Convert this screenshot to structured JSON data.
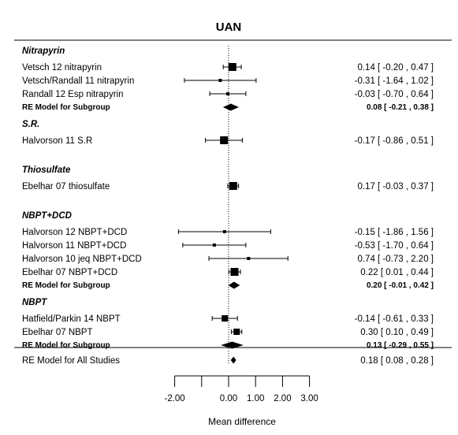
{
  "chart_data": {
    "type": "forest",
    "title": "UAN",
    "xlabel": "Mean difference",
    "x_ticks": [
      -2,
      -1,
      0,
      1,
      2,
      3
    ],
    "x_tick_labels": [
      "-2.00",
      "",
      "0.00",
      "1.00",
      "2.00",
      "3.00"
    ],
    "reference_line": 0,
    "groups": [
      {
        "name": "Nitrapyrin",
        "studies": [
          {
            "label": "Vetsch 12 nitrapyrin",
            "est": 0.14,
            "lo": -0.2,
            "hi": 0.47,
            "ci_text": "0.14 [ -0.20 , 0.47 ]",
            "weight": "large"
          },
          {
            "label": "Vetsch/Randall  11 nitrapyrin",
            "est": -0.31,
            "lo": -1.64,
            "hi": 1.02,
            "ci_text": "-0.31 [ -1.64 , 1.02 ]",
            "weight": "small"
          },
          {
            "label": "Randall 12 Esp nitrapyrin",
            "est": -0.03,
            "lo": -0.7,
            "hi": 0.64,
            "ci_text": "-0.03 [ -0.70 , 0.64 ]",
            "weight": "small"
          }
        ],
        "summary": {
          "label": "RE Model for Subgroup",
          "est": 0.08,
          "lo": -0.21,
          "hi": 0.38,
          "ci_text": "0.08 [ -0.21 , 0.38 ]"
        }
      },
      {
        "name": "S.R.",
        "studies": [
          {
            "label": "Halvorson 11 S.R",
            "est": -0.17,
            "lo": -0.86,
            "hi": 0.51,
            "ci_text": "-0.17 [ -0.86 , 0.51 ]",
            "weight": "large"
          }
        ],
        "summary": null
      },
      {
        "name": "Thiosulfate",
        "studies": [
          {
            "label": "Ebelhar 07 thiosulfate",
            "est": 0.17,
            "lo": -0.03,
            "hi": 0.37,
            "ci_text": "0.17 [ -0.03 , 0.37 ]",
            "weight": "large"
          }
        ],
        "summary": null
      },
      {
        "name": "NBPT+DCD",
        "studies": [
          {
            "label": "Halvorson 12 NBPT+DCD",
            "est": -0.15,
            "lo": -1.86,
            "hi": 1.56,
            "ci_text": "-0.15 [ -1.86 , 1.56 ]",
            "weight": "small"
          },
          {
            "label": "Halvorson 11 NBPT+DCD",
            "est": -0.53,
            "lo": -1.7,
            "hi": 0.64,
            "ci_text": "-0.53 [ -1.70 , 0.64 ]",
            "weight": "small"
          },
          {
            "label": "Halvorson 10 jeq NBPT+DCD",
            "est": 0.74,
            "lo": -0.73,
            "hi": 2.2,
            "ci_text": "0.74 [ -0.73 , 2.20 ]",
            "weight": "small"
          },
          {
            "label": "Ebelhar 07 NBPT+DCD",
            "est": 0.22,
            "lo": 0.01,
            "hi": 0.44,
            "ci_text": "0.22 [  0.01 , 0.44 ]",
            "weight": "large"
          }
        ],
        "summary": {
          "label": "RE Model for Subgroup",
          "est": 0.2,
          "lo": -0.01,
          "hi": 0.42,
          "ci_text": "0.20 [ -0.01 , 0.42 ]"
        }
      },
      {
        "name": "NBPT",
        "studies": [
          {
            "label": "Hatfield/Parkin 14 NBPT",
            "est": -0.14,
            "lo": -0.61,
            "hi": 0.33,
            "ci_text": "-0.14 [ -0.61 , 0.33 ]",
            "weight": "medium"
          },
          {
            "label": "Ebelhar 07 NBPT",
            "est": 0.3,
            "lo": 0.1,
            "hi": 0.49,
            "ci_text": "0.30 [  0.10 , 0.49 ]",
            "weight": "medium"
          }
        ],
        "summary": {
          "label": "RE Model for Subgroup",
          "est": 0.13,
          "lo": -0.29,
          "hi": 0.55,
          "ci_text": "0.13 [ -0.29 , 0.55 ]"
        }
      }
    ],
    "overall": {
      "label": "RE Model for All Studies",
      "est": 0.18,
      "lo": 0.08,
      "hi": 0.28,
      "ci_text": "0.18 [  0.08 , 0.28 ]"
    }
  }
}
